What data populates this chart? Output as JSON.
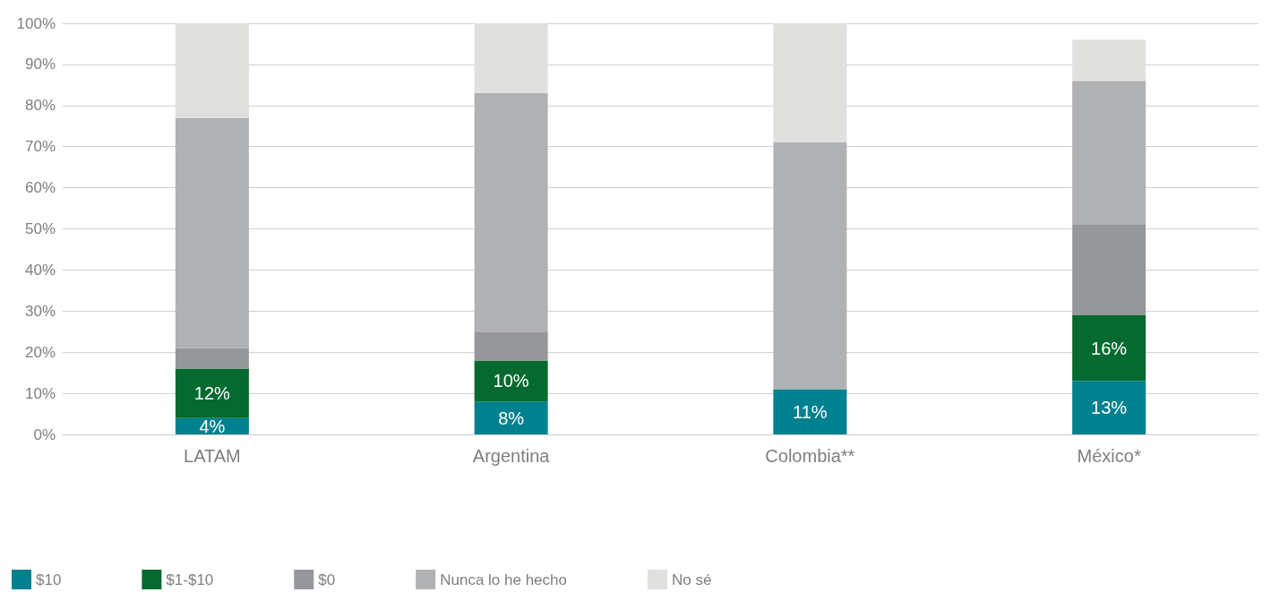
{
  "chart_data": {
    "type": "bar",
    "stacked": true,
    "categories": [
      "LATAM",
      "Argentina",
      "Colombia**",
      "México*"
    ],
    "series": [
      {
        "name": "$10",
        "color": "#00818f",
        "values": [
          4,
          8,
          11,
          13
        ],
        "value_labels": [
          "4%",
          "8%",
          "11%",
          "13%"
        ]
      },
      {
        "name": "$1-$10",
        "color": "#046a30",
        "values": [
          12,
          10,
          0,
          16
        ],
        "value_labels": [
          "12%",
          "10%",
          null,
          "16%"
        ]
      },
      {
        "name": "$0",
        "color": "#96979a",
        "values": [
          5,
          7,
          0,
          22
        ],
        "value_labels": [
          null,
          null,
          null,
          null
        ]
      },
      {
        "name": "Nunca lo he hecho",
        "color": "#b0b1b3",
        "values": [
          56,
          58,
          60,
          35
        ],
        "value_labels": [
          null,
          null,
          null,
          null
        ]
      },
      {
        "name": "No sé",
        "color": "#e0e0df",
        "values": [
          23,
          17,
          29,
          10
        ],
        "value_labels": [
          null,
          null,
          null,
          null
        ]
      }
    ],
    "ylim": [
      0,
      100
    ],
    "yticks": [
      {
        "value": 0,
        "label": "0%"
      },
      {
        "value": 10,
        "label": "10%"
      },
      {
        "value": 20,
        "label": "20%"
      },
      {
        "value": 30,
        "label": "30%"
      },
      {
        "value": 40,
        "label": "40%"
      },
      {
        "value": 50,
        "label": "50%"
      },
      {
        "value": 60,
        "label": "60%"
      },
      {
        "value": 70,
        "label": "70%"
      },
      {
        "value": 80,
        "label": "80%"
      },
      {
        "value": 90,
        "label": "90%"
      },
      {
        "value": 100,
        "label": "100%"
      }
    ],
    "grid": "y",
    "legend": "bottom left"
  }
}
